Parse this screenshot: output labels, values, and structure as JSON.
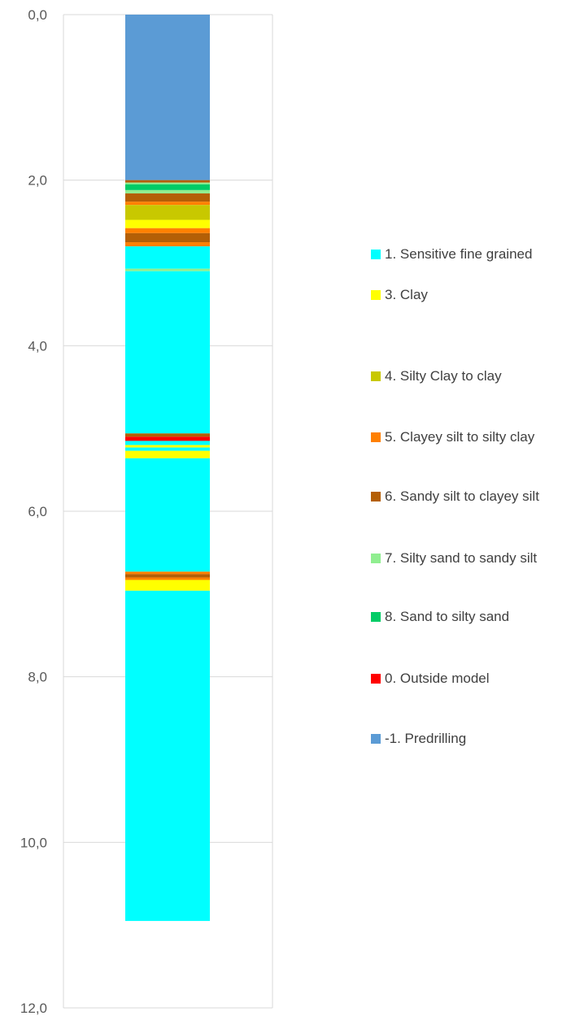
{
  "chart_data": {
    "type": "bar",
    "orientation": "vertical-stacked-column",
    "ylim": [
      0,
      12
    ],
    "y_inverted": true,
    "y_ticks": [
      "0,0",
      "2,0",
      "4,0",
      "6,0",
      "8,0",
      "10,0",
      "12,0"
    ],
    "grid": true,
    "legend_position": "right",
    "legend": [
      {
        "label": "1. Sensitive fine grained",
        "color": "#00ffff"
      },
      {
        "label": "3. Clay",
        "color": "#ffff00"
      },
      {
        "label": "4. Silty Clay to clay",
        "color": "#c8c800"
      },
      {
        "label": "5. Clayey silt to silty clay",
        "color": "#ff8000"
      },
      {
        "label": "6. Sandy silt to clayey silt",
        "color": "#b45f06"
      },
      {
        "label": "7. Silty sand to sandy silt",
        "color": "#90ee90"
      },
      {
        "label": "8. Sand to silty sand",
        "color": "#00cc66"
      },
      {
        "label": "0. Outside model",
        "color": "#ff0000"
      },
      {
        "label": "-1. Predrilling",
        "color": "#5b9bd5"
      }
    ],
    "layers": [
      {
        "top": 0.0,
        "bottom": 2.0,
        "class": "-1. Predrilling",
        "color": "#5b9bd5"
      },
      {
        "top": 2.0,
        "bottom": 2.03,
        "class": "6. Sandy silt to clayey silt",
        "color": "#b45f06"
      },
      {
        "top": 2.03,
        "bottom": 2.05,
        "class": "7. Silty sand to sandy silt",
        "color": "#90ee90"
      },
      {
        "top": 2.05,
        "bottom": 2.12,
        "class": "8. Sand to silty sand",
        "color": "#00cc66"
      },
      {
        "top": 2.12,
        "bottom": 2.16,
        "class": "7. Silty sand to sandy silt",
        "color": "#90ee90"
      },
      {
        "top": 2.16,
        "bottom": 2.26,
        "class": "6. Sandy silt to clayey silt",
        "color": "#b45f06"
      },
      {
        "top": 2.26,
        "bottom": 2.3,
        "class": "5. Clayey silt to silty clay",
        "color": "#ff8000"
      },
      {
        "top": 2.3,
        "bottom": 2.48,
        "class": "4. Silty Clay to clay",
        "color": "#c8c800"
      },
      {
        "top": 2.48,
        "bottom": 2.58,
        "class": "3. Clay",
        "color": "#ffff00"
      },
      {
        "top": 2.58,
        "bottom": 2.64,
        "class": "5. Clayey silt to silty clay",
        "color": "#ff8000"
      },
      {
        "top": 2.64,
        "bottom": 2.75,
        "class": "6. Sandy silt to clayey silt",
        "color": "#b45f06"
      },
      {
        "top": 2.75,
        "bottom": 2.8,
        "class": "5. Clayey silt to silty clay",
        "color": "#ff8000"
      },
      {
        "top": 2.8,
        "bottom": 3.07,
        "class": "1. Sensitive fine grained",
        "color": "#00ffff"
      },
      {
        "top": 3.07,
        "bottom": 3.1,
        "class": "7. Silty sand to sandy silt",
        "color": "#90ee90"
      },
      {
        "top": 3.1,
        "bottom": 5.06,
        "class": "1. Sensitive fine grained",
        "color": "#00ffff"
      },
      {
        "top": 5.06,
        "bottom": 5.1,
        "class": "6. Sandy silt to clayey silt",
        "color": "#b45f06"
      },
      {
        "top": 5.1,
        "bottom": 5.15,
        "class": "0. Outside model",
        "color": "#ff0000"
      },
      {
        "top": 5.15,
        "bottom": 5.2,
        "class": "1. Sensitive fine grained",
        "color": "#00ffff"
      },
      {
        "top": 5.2,
        "bottom": 5.23,
        "class": "3. Clay",
        "color": "#ffff00"
      },
      {
        "top": 5.23,
        "bottom": 5.27,
        "class": "1. Sensitive fine grained",
        "color": "#00ffff"
      },
      {
        "top": 5.27,
        "bottom": 5.36,
        "class": "3. Clay",
        "color": "#ffff00"
      },
      {
        "top": 5.36,
        "bottom": 6.73,
        "class": "1. Sensitive fine grained",
        "color": "#00ffff"
      },
      {
        "top": 6.73,
        "bottom": 6.76,
        "class": "5. Clayey silt to silty clay",
        "color": "#ff8000"
      },
      {
        "top": 6.76,
        "bottom": 6.8,
        "class": "6. Sandy silt to clayey silt",
        "color": "#b45f06"
      },
      {
        "top": 6.8,
        "bottom": 6.83,
        "class": "5. Clayey silt to silty clay",
        "color": "#ff8000"
      },
      {
        "top": 6.83,
        "bottom": 6.96,
        "class": "3. Clay",
        "color": "#ffff00"
      },
      {
        "top": 6.96,
        "bottom": 10.95,
        "class": "1. Sensitive fine grained",
        "color": "#00ffff"
      }
    ]
  }
}
